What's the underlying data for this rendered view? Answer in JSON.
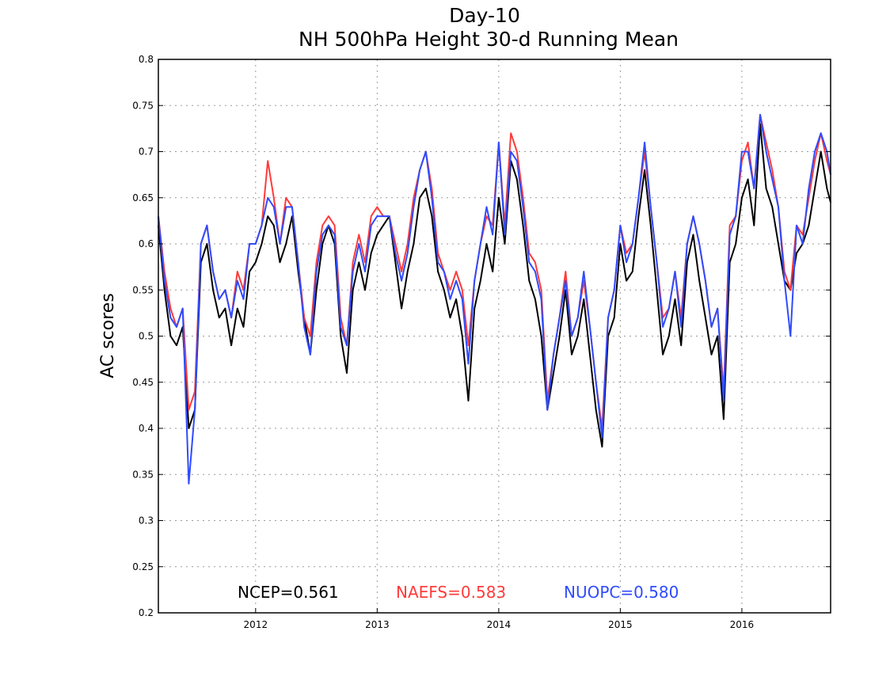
{
  "chart_data": {
    "type": "line",
    "title": "Day-10",
    "subtitle": "NH 500hPa Height 30-d Running Mean",
    "xlabel": "",
    "ylabel": "AC scores",
    "xlim": [
      2011.2,
      2016.73
    ],
    "ylim": [
      0.2,
      0.8
    ],
    "yticks": [
      "0.2",
      "0.25",
      "0.3",
      "0.35",
      "0.4",
      "0.45",
      "0.5",
      "0.55",
      "0.6",
      "0.65",
      "0.7",
      "0.75",
      "0.8"
    ],
    "xticks": [
      {
        "label": "2012",
        "value": 2012
      },
      {
        "label": "2013",
        "value": 2013
      },
      {
        "label": "2014",
        "value": 2014
      },
      {
        "label": "2015",
        "value": 2015
      },
      {
        "label": "2016",
        "value": 2016
      }
    ],
    "grid": true,
    "legend_position": "bottom-center",
    "x": [
      2011.2,
      2011.25,
      2011.3,
      2011.35,
      2011.4,
      2011.45,
      2011.5,
      2011.55,
      2011.6,
      2011.65,
      2011.7,
      2011.75,
      2011.8,
      2011.85,
      2011.9,
      2011.95,
      2012.0,
      2012.05,
      2012.1,
      2012.15,
      2012.2,
      2012.25,
      2012.3,
      2012.35,
      2012.4,
      2012.45,
      2012.5,
      2012.55,
      2012.6,
      2012.65,
      2012.7,
      2012.75,
      2012.8,
      2012.85,
      2012.9,
      2012.95,
      2013.0,
      2013.05,
      2013.1,
      2013.15,
      2013.2,
      2013.25,
      2013.3,
      2013.35,
      2013.4,
      2013.45,
      2013.5,
      2013.55,
      2013.6,
      2013.65,
      2013.7,
      2013.75,
      2013.8,
      2013.85,
      2013.9,
      2013.95,
      2014.0,
      2014.05,
      2014.1,
      2014.15,
      2014.2,
      2014.25,
      2014.3,
      2014.35,
      2014.4,
      2014.45,
      2014.5,
      2014.55,
      2014.6,
      2014.65,
      2014.7,
      2014.75,
      2014.8,
      2014.85,
      2014.9,
      2014.95,
      2015.0,
      2015.05,
      2015.1,
      2015.15,
      2015.2,
      2015.25,
      2015.3,
      2015.35,
      2015.4,
      2015.45,
      2015.5,
      2015.55,
      2015.6,
      2015.65,
      2015.7,
      2015.75,
      2015.8,
      2015.85,
      2015.9,
      2015.95,
      2016.0,
      2016.05,
      2016.1,
      2016.15,
      2016.2,
      2016.25,
      2016.3,
      2016.35,
      2016.4,
      2016.45,
      2016.5,
      2016.55,
      2016.6,
      2016.65,
      2016.7,
      2016.73
    ],
    "series": [
      {
        "name": "NCEP",
        "color": "#000000",
        "legend_label": "NCEP=0.561",
        "values": [
          0.62,
          0.55,
          0.5,
          0.49,
          0.51,
          0.4,
          0.42,
          0.58,
          0.6,
          0.55,
          0.52,
          0.53,
          0.49,
          0.53,
          0.51,
          0.57,
          0.58,
          0.6,
          0.63,
          0.62,
          0.58,
          0.6,
          0.63,
          0.57,
          0.52,
          0.48,
          0.55,
          0.6,
          0.62,
          0.6,
          0.5,
          0.46,
          0.55,
          0.58,
          0.55,
          0.59,
          0.61,
          0.62,
          0.63,
          0.58,
          0.53,
          0.57,
          0.6,
          0.65,
          0.66,
          0.63,
          0.57,
          0.55,
          0.52,
          0.54,
          0.5,
          0.43,
          0.53,
          0.56,
          0.6,
          0.57,
          0.65,
          0.6,
          0.69,
          0.67,
          0.62,
          0.56,
          0.54,
          0.5,
          0.42,
          0.46,
          0.5,
          0.55,
          0.48,
          0.5,
          0.54,
          0.48,
          0.42,
          0.38,
          0.5,
          0.52,
          0.6,
          0.56,
          0.57,
          0.63,
          0.68,
          0.62,
          0.55,
          0.48,
          0.5,
          0.54,
          0.49,
          0.58,
          0.61,
          0.56,
          0.52,
          0.48,
          0.5,
          0.41,
          0.58,
          0.6,
          0.65,
          0.67,
          0.62,
          0.73,
          0.66,
          0.64,
          0.6,
          0.56,
          0.55,
          0.59,
          0.6,
          0.62,
          0.66,
          0.7,
          0.66,
          0.645
        ]
      },
      {
        "name": "NAEFS",
        "color": "#ff3b3b",
        "legend_label": "NAEFS=0.583",
        "values": [
          0.63,
          0.57,
          0.53,
          0.51,
          0.53,
          0.42,
          0.44,
          0.6,
          0.62,
          0.57,
          0.54,
          0.55,
          0.52,
          0.57,
          0.55,
          0.6,
          0.6,
          0.62,
          0.69,
          0.65,
          0.6,
          0.65,
          0.64,
          0.58,
          0.52,
          0.5,
          0.58,
          0.62,
          0.63,
          0.62,
          0.52,
          0.49,
          0.58,
          0.61,
          0.58,
          0.63,
          0.64,
          0.63,
          0.63,
          0.6,
          0.57,
          0.6,
          0.65,
          0.68,
          0.7,
          0.66,
          0.59,
          0.57,
          0.55,
          0.57,
          0.55,
          0.49,
          0.56,
          0.6,
          0.63,
          0.62,
          0.71,
          0.62,
          0.72,
          0.7,
          0.65,
          0.59,
          0.58,
          0.55,
          0.43,
          0.48,
          0.52,
          0.57,
          0.5,
          0.52,
          0.56,
          0.51,
          0.45,
          0.4,
          0.52,
          0.55,
          0.62,
          0.59,
          0.6,
          0.65,
          0.7,
          0.64,
          0.58,
          0.52,
          0.53,
          0.57,
          0.52,
          0.6,
          0.63,
          0.6,
          0.56,
          0.51,
          0.53,
          0.44,
          0.62,
          0.63,
          0.69,
          0.71,
          0.66,
          0.74,
          0.71,
          0.68,
          0.64,
          0.57,
          0.55,
          0.62,
          0.61,
          0.65,
          0.69,
          0.72,
          0.69,
          0.675
        ]
      },
      {
        "name": "NUOPC",
        "color": "#2f4bff",
        "legend_label": "NUOPC=0.580",
        "values": [
          0.63,
          0.56,
          0.52,
          0.51,
          0.53,
          0.34,
          0.42,
          0.6,
          0.62,
          0.57,
          0.54,
          0.55,
          0.52,
          0.56,
          0.54,
          0.6,
          0.6,
          0.62,
          0.65,
          0.64,
          0.6,
          0.64,
          0.64,
          0.58,
          0.51,
          0.48,
          0.57,
          0.61,
          0.62,
          0.61,
          0.51,
          0.49,
          0.57,
          0.6,
          0.57,
          0.62,
          0.63,
          0.63,
          0.63,
          0.59,
          0.56,
          0.59,
          0.64,
          0.68,
          0.7,
          0.65,
          0.58,
          0.57,
          0.54,
          0.56,
          0.54,
          0.47,
          0.56,
          0.6,
          0.64,
          0.61,
          0.71,
          0.61,
          0.7,
          0.69,
          0.64,
          0.58,
          0.57,
          0.54,
          0.42,
          0.48,
          0.52,
          0.56,
          0.5,
          0.52,
          0.57,
          0.51,
          0.45,
          0.39,
          0.52,
          0.55,
          0.62,
          0.58,
          0.6,
          0.65,
          0.71,
          0.64,
          0.58,
          0.51,
          0.53,
          0.57,
          0.51,
          0.6,
          0.63,
          0.6,
          0.56,
          0.51,
          0.53,
          0.43,
          0.61,
          0.63,
          0.7,
          0.7,
          0.66,
          0.74,
          0.7,
          0.67,
          0.64,
          0.56,
          0.5,
          0.62,
          0.6,
          0.66,
          0.7,
          0.72,
          0.7,
          0.675
        ]
      }
    ]
  }
}
